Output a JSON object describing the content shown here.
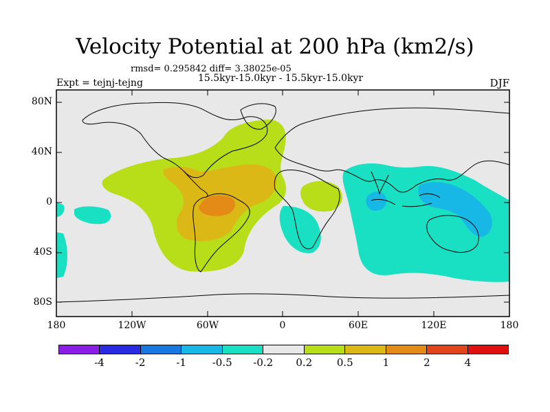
{
  "title": "Velocity Potential at 200 hPa (km2/s)",
  "stats": "rmsd= 0.295842 diff= 3.38025e-05",
  "period": "15.5kyr-15.0kyr - 15.5kyr-15.0kyr",
  "experiment": "Expt = tejnj-tejng",
  "season": "DJF",
  "lat_labels": [
    "80N",
    "40N",
    "0",
    "40S",
    "80S"
  ],
  "lon_labels": [
    "180",
    "120W",
    "60W",
    "0",
    "60E",
    "120E",
    "180"
  ],
  "colorbar": {
    "colors": [
      "#8a1de6",
      "#2a2ae0",
      "#1878e0",
      "#18b8e6",
      "#19e0c2",
      "#e8e8e8",
      "#b8de1a",
      "#dcb816",
      "#e48a16",
      "#e0461a",
      "#e01010"
    ],
    "labels": [
      "-4",
      "-2",
      "-1",
      "-0.5",
      "-0.2",
      "0.2",
      "0.5",
      "1",
      "2",
      "4"
    ]
  }
}
